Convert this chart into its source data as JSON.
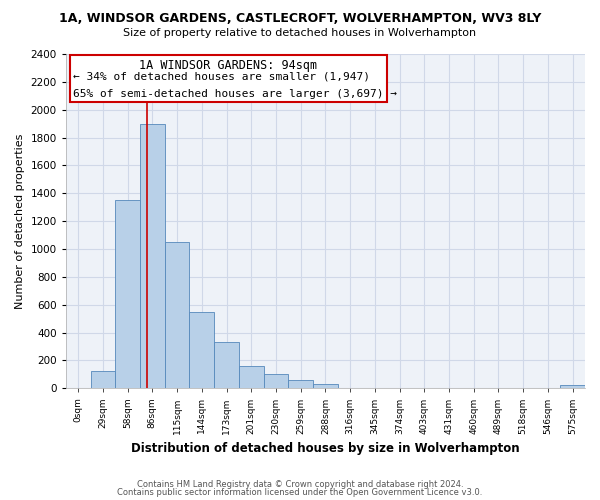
{
  "title": "1A, WINDSOR GARDENS, CASTLECROFT, WOLVERHAMPTON, WV3 8LY",
  "subtitle": "Size of property relative to detached houses in Wolverhampton",
  "xlabel": "Distribution of detached houses by size in Wolverhampton",
  "ylabel": "Number of detached properties",
  "bar_labels": [
    "0sqm",
    "29sqm",
    "58sqm",
    "86sqm",
    "115sqm",
    "144sqm",
    "173sqm",
    "201sqm",
    "230sqm",
    "259sqm",
    "288sqm",
    "316sqm",
    "345sqm",
    "374sqm",
    "403sqm",
    "431sqm",
    "460sqm",
    "489sqm",
    "518sqm",
    "546sqm",
    "575sqm"
  ],
  "bar_values": [
    0,
    125,
    1350,
    1900,
    1050,
    550,
    335,
    160,
    105,
    60,
    30,
    0,
    0,
    0,
    0,
    0,
    0,
    0,
    0,
    0,
    20
  ],
  "bar_color": "#b8d0e8",
  "bar_edge_color": "#5588bb",
  "vline_color": "#cc0000",
  "annotation_title": "1A WINDSOR GARDENS: 94sqm",
  "annotation_line1": "← 34% of detached houses are smaller (1,947)",
  "annotation_line2": "65% of semi-detached houses are larger (3,697) →",
  "ylim": [
    0,
    2400
  ],
  "yticks": [
    0,
    200,
    400,
    600,
    800,
    1000,
    1200,
    1400,
    1600,
    1800,
    2000,
    2200,
    2400
  ],
  "footer1": "Contains HM Land Registry data © Crown copyright and database right 2024.",
  "footer2": "Contains public sector information licensed under the Open Government Licence v3.0.",
  "bg_color": "#ffffff",
  "grid_color": "#d0d8e8",
  "plot_bg_color": "#eef2f8"
}
